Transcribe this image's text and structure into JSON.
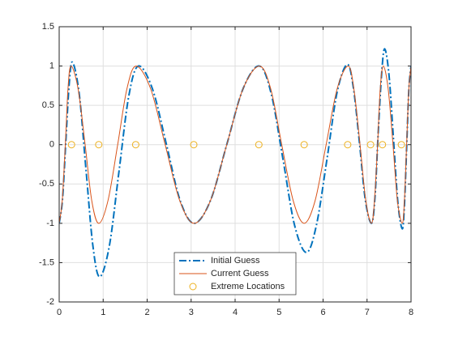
{
  "chart_data": {
    "type": "line",
    "xlim": [
      0,
      8
    ],
    "xticks": [
      0,
      1,
      2,
      3,
      4,
      5,
      6,
      7,
      8
    ],
    "ylim": [
      -2,
      1.5
    ],
    "yticks": [
      -2,
      -1.5,
      -1,
      -0.5,
      0,
      0.5,
      1,
      1.5
    ],
    "grid": true,
    "legend": "bottom",
    "series": [
      {
        "name": "Initial Guess",
        "color": "#0072bd",
        "style": "dashdot",
        "marker": "none",
        "x": [
          0,
          0.075,
          0.15,
          0.225,
          0.3,
          0.455,
          0.61,
          0.765,
          0.92,
          1.14,
          1.36,
          1.58,
          1.8,
          2.12,
          2.44,
          2.75,
          3.07,
          3.44,
          3.81,
          4.18,
          4.55,
          4.82,
          5.09,
          5.35,
          5.62,
          5.85,
          6.09,
          6.32,
          6.55,
          6.69,
          6.83,
          6.96,
          7.1,
          7.18,
          7.25,
          7.33,
          7.4,
          7.5,
          7.6,
          7.7,
          7.8,
          7.85,
          7.9,
          7.95,
          8
        ],
        "values": [
          -1,
          -0.7,
          0.03,
          0.75,
          1.05,
          0.65,
          -0.32,
          -1.28,
          -1.68,
          -1.29,
          -0.34,
          0.61,
          1,
          0.71,
          0,
          -0.71,
          -1,
          -0.71,
          0,
          0.71,
          1,
          0.65,
          -0.19,
          -1.02,
          -1.37,
          -1.02,
          -0.18,
          0.67,
          1.02,
          0.72,
          0.01,
          -0.7,
          -1,
          -0.67,
          0.11,
          0.89,
          1.22,
          0.88,
          0.08,
          -0.73,
          -1.07,
          -0.77,
          -0.04,
          0.7,
          1
        ]
      },
      {
        "name": "Current Guess",
        "color": "#d95319",
        "style": "solid",
        "marker": "none",
        "x": [
          0,
          0.07,
          0.14,
          0.2,
          0.27,
          0.43,
          0.59,
          0.74,
          0.9,
          1.11,
          1.33,
          1.54,
          1.75,
          2.08,
          2.41,
          2.74,
          3.07,
          3.44,
          3.81,
          4.18,
          4.55,
          4.81,
          5.06,
          5.32,
          5.57,
          5.82,
          6.07,
          6.32,
          6.57,
          6.7,
          6.84,
          6.97,
          7.1,
          7.17,
          7.24,
          7.3,
          7.37,
          7.48,
          7.59,
          7.69,
          7.8,
          7.85,
          7.9,
          7.95,
          8
        ],
        "values": [
          -1,
          -0.71,
          0,
          0.71,
          1,
          0.71,
          0,
          -0.71,
          -1,
          -0.71,
          0,
          0.71,
          1,
          0.71,
          0,
          -0.71,
          -1,
          -0.71,
          0,
          0.71,
          1,
          0.71,
          0,
          -0.71,
          -1,
          -0.71,
          0,
          0.71,
          1,
          0.71,
          0,
          -0.71,
          -1,
          -0.71,
          0,
          0.71,
          1,
          0.71,
          0,
          -0.71,
          -1,
          -0.71,
          0,
          0.71,
          1
        ]
      },
      {
        "name": "Extreme Locations",
        "color": "#edb120",
        "style": "none",
        "marker": "circle",
        "x": [
          0.28,
          0.9,
          1.74,
          3.06,
          4.54,
          5.57,
          6.56,
          7.08,
          7.35,
          7.78
        ],
        "values": [
          0,
          0,
          0,
          0,
          0,
          0,
          0,
          0,
          0,
          0
        ]
      }
    ]
  }
}
